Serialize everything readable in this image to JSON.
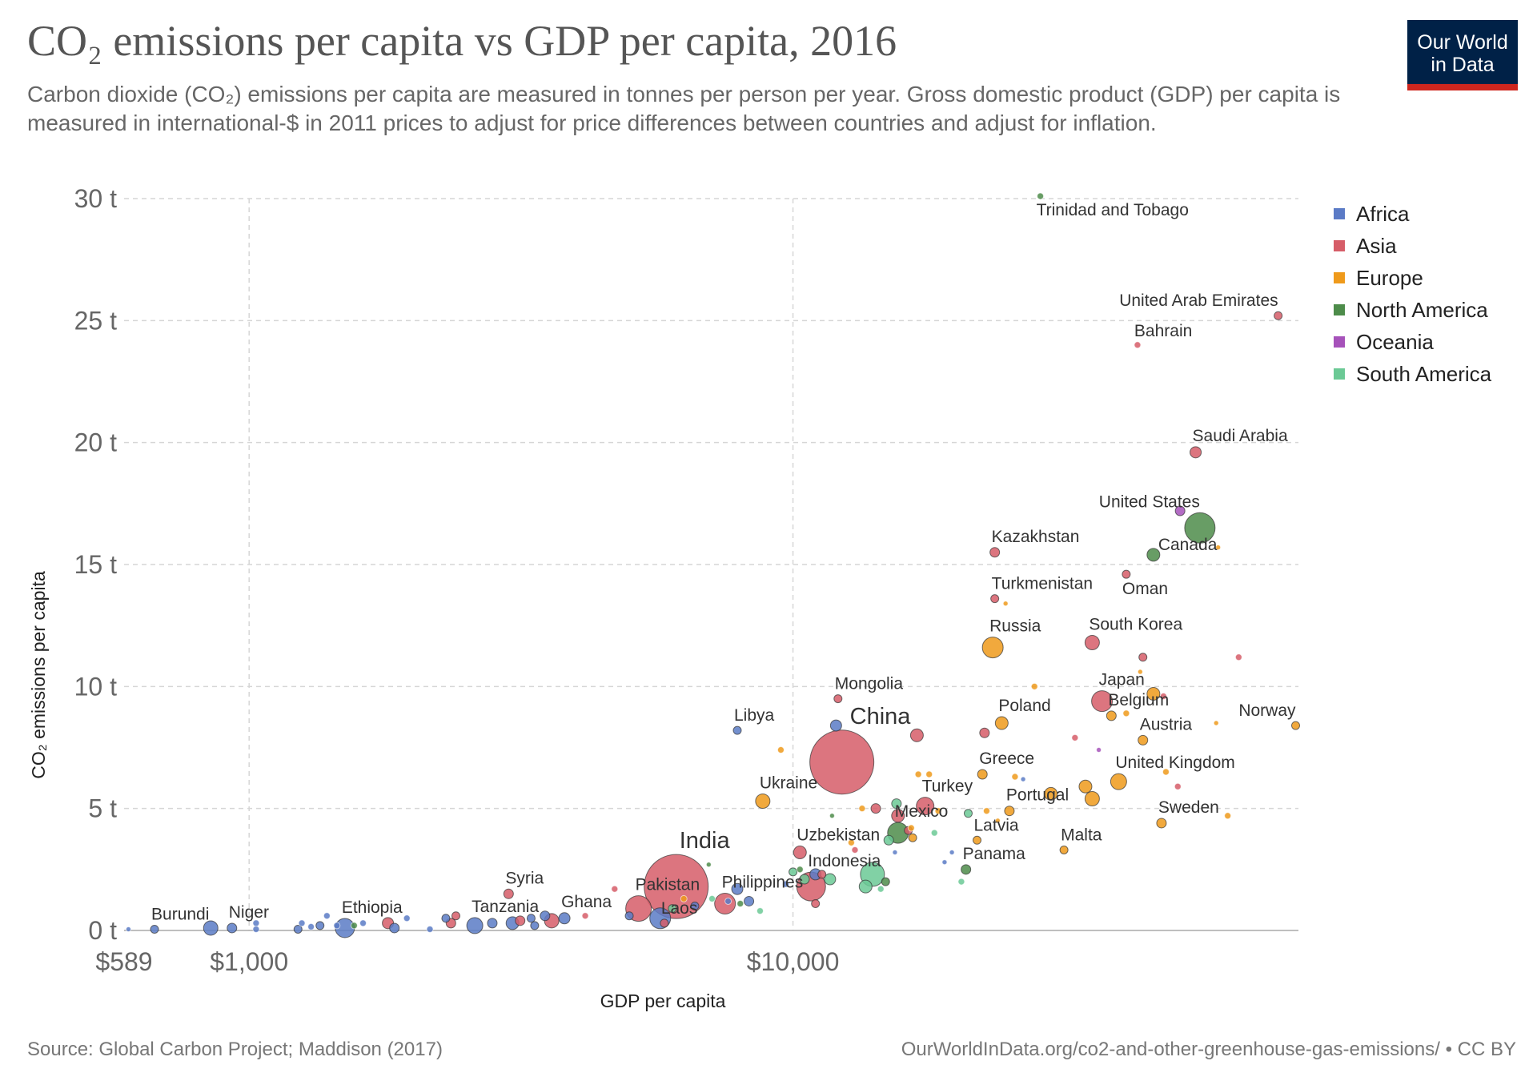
{
  "title": "CO₂ emissions per capita vs GDP per capita, 2016",
  "subtitle": "Carbon dioxide (CO₂) emissions per capita are measured in tonnes per person per year. Gross domestic product (GDP) per capita is measured in international-$ in 2011 prices to adjust for price differences between countries and adjust for inflation.",
  "logo": {
    "line1": "Our World",
    "line2": "in Data"
  },
  "footer": {
    "source": "Source: Global Carbon Project; Maddison (2017)",
    "url": "OurWorldInData.org/co2-and-other-greenhouse-gas-emissions/ • CC BY"
  },
  "colors": {
    "Africa": "#5b7bc6",
    "Asia": "#d65d68",
    "Europe": "#ef9a1b",
    "North America": "#4d8c4a",
    "Oceania": "#a652ba",
    "South America": "#6bc995",
    "grid": "#d6d6d6",
    "axis": "#aaaaaa"
  },
  "chart_data": {
    "type": "scatter",
    "xscale": "log",
    "xlim": [
      589,
      85000
    ],
    "ylim": [
      0,
      30
    ],
    "xlabel": "GDP per capita",
    "ylabel": "CO₂ emissions per capita",
    "yticks": [
      {
        "value": 0,
        "label": "0 t"
      },
      {
        "value": 5,
        "label": "5 t"
      },
      {
        "value": 10,
        "label": "10 t"
      },
      {
        "value": 15,
        "label": "15 t"
      },
      {
        "value": 20,
        "label": "20 t"
      },
      {
        "value": 25,
        "label": "25 t"
      },
      {
        "value": 30,
        "label": "30 t"
      }
    ],
    "xticks": [
      {
        "value": 589,
        "label": "$589",
        "grid": false
      },
      {
        "value": 1000,
        "label": "$1,000",
        "grid": true
      },
      {
        "value": 10000,
        "label": "$10,000",
        "grid": true
      }
    ],
    "legend": [
      "Africa",
      "Asia",
      "Europe",
      "North America",
      "Oceania",
      "South America"
    ],
    "points": [
      {
        "name": "Trinidad and Tobago",
        "region": "North America",
        "x": 28500,
        "y": 30.1,
        "r": 4,
        "label": true,
        "lpos": "below"
      },
      {
        "name": "United Arab Emirates",
        "region": "Asia",
        "x": 78000,
        "y": 25.2,
        "r": 5,
        "label": true,
        "lpos": "above-left"
      },
      {
        "name": "Bahrain",
        "region": "Asia",
        "x": 43000,
        "y": 24.0,
        "r": 4,
        "label": true,
        "lpos": "above"
      },
      {
        "name": "Saudi Arabia",
        "region": "Asia",
        "x": 55000,
        "y": 19.6,
        "r": 7,
        "label": true,
        "lpos": "above"
      },
      {
        "name": "United States",
        "region": "North America",
        "x": 56000,
        "y": 16.5,
        "r": 19,
        "label": true,
        "lpos": "above-left"
      },
      {
        "name": "Canada",
        "region": "North America",
        "x": 46000,
        "y": 15.4,
        "r": 8,
        "label": true,
        "lpos": "right"
      },
      {
        "name": "Kazakhstan",
        "region": "Asia",
        "x": 23500,
        "y": 15.5,
        "r": 6,
        "label": true,
        "lpos": "above"
      },
      {
        "name": "Oman",
        "region": "Asia",
        "x": 41000,
        "y": 14.6,
        "r": 5,
        "label": true,
        "lpos": "below"
      },
      {
        "name": "Turkmenistan",
        "region": "Asia",
        "x": 23500,
        "y": 13.6,
        "r": 5,
        "label": true,
        "lpos": "above"
      },
      {
        "name": "Russia",
        "region": "Europe",
        "x": 23300,
        "y": 11.6,
        "r": 13,
        "label": true,
        "lpos": "above"
      },
      {
        "name": "South Korea",
        "region": "Asia",
        "x": 35500,
        "y": 11.8,
        "r": 9,
        "label": true,
        "lpos": "above"
      },
      {
        "name": "Mongolia",
        "region": "Asia",
        "x": 12100,
        "y": 9.5,
        "r": 5,
        "label": true,
        "lpos": "above"
      },
      {
        "name": "Japan",
        "region": "Asia",
        "x": 37000,
        "y": 9.4,
        "r": 13,
        "label": true,
        "lpos": "above"
      },
      {
        "name": "Belgium",
        "region": "Europe",
        "x": 38500,
        "y": 8.8,
        "r": 6,
        "label": true,
        "lpos": "above"
      },
      {
        "name": "Norway",
        "region": "Europe",
        "x": 84000,
        "y": 8.4,
        "r": 5,
        "label": true,
        "lpos": "above-left"
      },
      {
        "name": "Poland",
        "region": "Europe",
        "x": 24200,
        "y": 8.5,
        "r": 8,
        "label": true,
        "lpos": "above"
      },
      {
        "name": "Libya",
        "region": "Africa",
        "x": 7900,
        "y": 8.2,
        "r": 5,
        "label": true,
        "lpos": "above"
      },
      {
        "name": "China",
        "region": "Asia",
        "x": 12300,
        "y": 6.9,
        "r": 40,
        "label": true,
        "lpos": "above-big"
      },
      {
        "name": "Austria",
        "region": "Europe",
        "x": 44000,
        "y": 7.8,
        "r": 6,
        "label": true,
        "lpos": "above"
      },
      {
        "name": "Greece",
        "region": "Europe",
        "x": 22300,
        "y": 6.4,
        "r": 6,
        "label": true,
        "lpos": "above"
      },
      {
        "name": "United Kingdom",
        "region": "Europe",
        "x": 39700,
        "y": 6.1,
        "r": 10,
        "label": true,
        "lpos": "above"
      },
      {
        "name": "Ukraine",
        "region": "Europe",
        "x": 8800,
        "y": 5.3,
        "r": 9,
        "label": true,
        "lpos": "above"
      },
      {
        "name": "Turkey",
        "region": "Asia",
        "x": 17500,
        "y": 5.1,
        "r": 11,
        "label": true,
        "lpos": "above"
      },
      {
        "name": "Portugal",
        "region": "Europe",
        "x": 25000,
        "y": 4.9,
        "r": 6,
        "label": true,
        "lpos": "above"
      },
      {
        "name": "Sweden",
        "region": "Europe",
        "x": 47600,
        "y": 4.4,
        "r": 6,
        "label": true,
        "lpos": "above"
      },
      {
        "name": "Mexico",
        "region": "North America",
        "x": 15600,
        "y": 4.0,
        "r": 13,
        "label": true,
        "lpos": "above"
      },
      {
        "name": "Latvia",
        "region": "Europe",
        "x": 21800,
        "y": 3.7,
        "r": 5,
        "label": true,
        "lpos": "above"
      },
      {
        "name": "Malta",
        "region": "Europe",
        "x": 31500,
        "y": 3.3,
        "r": 5,
        "label": true,
        "lpos": "above"
      },
      {
        "name": "Uzbekistan",
        "region": "Asia",
        "x": 10300,
        "y": 3.2,
        "r": 8,
        "label": true,
        "lpos": "above"
      },
      {
        "name": "Panama",
        "region": "North America",
        "x": 20800,
        "y": 2.5,
        "r": 6,
        "label": true,
        "lpos": "above"
      },
      {
        "name": "Indonesia",
        "region": "Asia",
        "x": 10800,
        "y": 1.8,
        "r": 18,
        "label": true,
        "lpos": "above"
      },
      {
        "name": "India",
        "region": "Asia",
        "x": 6100,
        "y": 1.8,
        "r": 40,
        "label": true,
        "lpos": "above-big"
      },
      {
        "name": "Philippines",
        "region": "Asia",
        "x": 7500,
        "y": 1.1,
        "r": 13,
        "label": true,
        "lpos": "above"
      },
      {
        "name": "Pakistan",
        "region": "Asia",
        "x": 5200,
        "y": 0.9,
        "r": 16,
        "label": true,
        "lpos": "above"
      },
      {
        "name": "Syria",
        "region": "Asia",
        "x": 3000,
        "y": 1.5,
        "r": 6,
        "label": true,
        "lpos": "above"
      },
      {
        "name": "Ghana",
        "region": "Africa",
        "x": 3800,
        "y": 0.5,
        "r": 7,
        "label": true,
        "lpos": "above"
      },
      {
        "name": "Laos",
        "region": "Asia",
        "x": 5800,
        "y": 0.3,
        "r": 5,
        "label": true,
        "lpos": "above"
      },
      {
        "name": "Tanzania",
        "region": "Africa",
        "x": 2600,
        "y": 0.2,
        "r": 10,
        "label": true,
        "lpos": "above"
      },
      {
        "name": "Ethiopia",
        "region": "Africa",
        "x": 1500,
        "y": 0.1,
        "r": 12,
        "label": true,
        "lpos": "above"
      },
      {
        "name": "Niger",
        "region": "Africa",
        "x": 930,
        "y": 0.1,
        "r": 6,
        "label": true,
        "lpos": "above"
      },
      {
        "name": "Burundi",
        "region": "Africa",
        "x": 670,
        "y": 0.05,
        "r": 5,
        "label": true,
        "lpos": "above"
      },
      {
        "region": "Africa",
        "x": 600,
        "y": 0.05,
        "r": 3
      },
      {
        "region": "Africa",
        "x": 850,
        "y": 0.1,
        "r": 9
      },
      {
        "region": "Africa",
        "x": 1030,
        "y": 0.3,
        "r": 4
      },
      {
        "region": "Africa",
        "x": 1030,
        "y": 0.05,
        "r": 4
      },
      {
        "region": "Africa",
        "x": 1250,
        "y": 0.3,
        "r": 4
      },
      {
        "region": "Africa",
        "x": 1230,
        "y": 0.05,
        "r": 5
      },
      {
        "region": "Africa",
        "x": 1300,
        "y": 0.15,
        "r": 4
      },
      {
        "region": "Africa",
        "x": 1350,
        "y": 0.2,
        "r": 5
      },
      {
        "region": "Africa",
        "x": 1390,
        "y": 0.6,
        "r": 4
      },
      {
        "region": "Africa",
        "x": 1450,
        "y": 0.2,
        "r": 4
      },
      {
        "region": "North America",
        "x": 1560,
        "y": 0.2,
        "r": 4
      },
      {
        "region": "Africa",
        "x": 1620,
        "y": 0.3,
        "r": 4
      },
      {
        "region": "Asia",
        "x": 1800,
        "y": 0.3,
        "r": 7
      },
      {
        "region": "Africa",
        "x": 1850,
        "y": 0.1,
        "r": 6
      },
      {
        "region": "Africa",
        "x": 1950,
        "y": 0.5,
        "r": 4
      },
      {
        "region": "Africa",
        "x": 2150,
        "y": 0.05,
        "r": 4
      },
      {
        "region": "Africa",
        "x": 2300,
        "y": 0.5,
        "r": 5
      },
      {
        "region": "Asia",
        "x": 2350,
        "y": 0.3,
        "r": 6
      },
      {
        "region": "Asia",
        "x": 2400,
        "y": 0.6,
        "r": 5
      },
      {
        "region": "Africa",
        "x": 2800,
        "y": 0.3,
        "r": 6
      },
      {
        "region": "Africa",
        "x": 3050,
        "y": 0.3,
        "r": 8
      },
      {
        "region": "Asia",
        "x": 3150,
        "y": 0.4,
        "r": 6
      },
      {
        "region": "Africa",
        "x": 3300,
        "y": 0.5,
        "r": 5
      },
      {
        "region": "Africa",
        "x": 3350,
        "y": 0.2,
        "r": 5
      },
      {
        "region": "Africa",
        "x": 3500,
        "y": 0.6,
        "r": 6
      },
      {
        "region": "Asia",
        "x": 3600,
        "y": 0.4,
        "r": 9
      },
      {
        "region": "Asia",
        "x": 4150,
        "y": 0.6,
        "r": 4
      },
      {
        "region": "Asia",
        "x": 4700,
        "y": 1.7,
        "r": 4
      },
      {
        "region": "Africa",
        "x": 5000,
        "y": 0.6,
        "r": 5
      },
      {
        "region": "Africa",
        "x": 5700,
        "y": 0.5,
        "r": 13
      },
      {
        "region": "South America",
        "x": 6000,
        "y": 0.9,
        "r": 5
      },
      {
        "region": "Europe",
        "x": 6300,
        "y": 1.3,
        "r": 4
      },
      {
        "region": "Africa",
        "x": 6600,
        "y": 1.0,
        "r": 5
      },
      {
        "region": "North America",
        "x": 7000,
        "y": 2.7,
        "r": 3
      },
      {
        "region": "South America",
        "x": 7100,
        "y": 1.3,
        "r": 4
      },
      {
        "region": "Africa",
        "x": 7600,
        "y": 1.2,
        "r": 4
      },
      {
        "region": "Africa",
        "x": 7900,
        "y": 1.7,
        "r": 7
      },
      {
        "region": "North America",
        "x": 8000,
        "y": 1.1,
        "r": 4
      },
      {
        "region": "Africa",
        "x": 8300,
        "y": 1.2,
        "r": 6
      },
      {
        "region": "South America",
        "x": 8700,
        "y": 0.8,
        "r": 4
      },
      {
        "region": "Europe",
        "x": 9500,
        "y": 7.4,
        "r": 4
      },
      {
        "region": "Africa",
        "x": 9700,
        "y": 1.9,
        "r": 4
      },
      {
        "region": "South America",
        "x": 10000,
        "y": 2.4,
        "r": 5
      },
      {
        "region": "North America",
        "x": 10300,
        "y": 2.5,
        "r": 4
      },
      {
        "region": "South America",
        "x": 10500,
        "y": 2.1,
        "r": 6
      },
      {
        "region": "Africa",
        "x": 11000,
        "y": 2.3,
        "r": 7
      },
      {
        "region": "Asia",
        "x": 11000,
        "y": 1.1,
        "r": 5
      },
      {
        "region": "Asia",
        "x": 11300,
        "y": 2.3,
        "r": 5
      },
      {
        "region": "South America",
        "x": 11700,
        "y": 2.1,
        "r": 7
      },
      {
        "region": "North America",
        "x": 11800,
        "y": 4.7,
        "r": 3
      },
      {
        "region": "Africa",
        "x": 12000,
        "y": 8.4,
        "r": 7
      },
      {
        "region": "Europe",
        "x": 12800,
        "y": 3.6,
        "r": 4
      },
      {
        "region": "Asia",
        "x": 13000,
        "y": 3.3,
        "r": 4
      },
      {
        "region": "Europe",
        "x": 13400,
        "y": 5.0,
        "r": 4
      },
      {
        "region": "South America",
        "x": 13600,
        "y": 1.8,
        "r": 8
      },
      {
        "region": "South America",
        "x": 14000,
        "y": 2.3,
        "r": 15
      },
      {
        "region": "Asia",
        "x": 14200,
        "y": 5.0,
        "r": 6
      },
      {
        "region": "South America",
        "x": 14500,
        "y": 1.7,
        "r": 4
      },
      {
        "region": "North America",
        "x": 14800,
        "y": 2.0,
        "r": 5
      },
      {
        "region": "South America",
        "x": 15000,
        "y": 3.7,
        "r": 6
      },
      {
        "region": "Africa",
        "x": 15400,
        "y": 3.2,
        "r": 3
      },
      {
        "region": "South America",
        "x": 15500,
        "y": 5.2,
        "r": 6
      },
      {
        "region": "Asia",
        "x": 15600,
        "y": 4.7,
        "r": 8
      },
      {
        "region": "Asia",
        "x": 16300,
        "y": 4.1,
        "r": 5
      },
      {
        "region": "Europe",
        "x": 16500,
        "y": 4.2,
        "r": 4
      },
      {
        "region": "Europe",
        "x": 16600,
        "y": 3.8,
        "r": 5
      },
      {
        "region": "Asia",
        "x": 16900,
        "y": 8.0,
        "r": 8
      },
      {
        "region": "Europe",
        "x": 17000,
        "y": 6.4,
        "r": 4
      },
      {
        "region": "Europe",
        "x": 17800,
        "y": 6.4,
        "r": 4
      },
      {
        "region": "Europe",
        "x": 18500,
        "y": 4.9,
        "r": 4
      },
      {
        "region": "South America",
        "x": 18200,
        "y": 4.0,
        "r": 4
      },
      {
        "region": "Africa",
        "x": 19000,
        "y": 2.8,
        "r": 3
      },
      {
        "region": "Africa",
        "x": 19600,
        "y": 3.2,
        "r": 3
      },
      {
        "region": "South America",
        "x": 20400,
        "y": 2.0,
        "r": 4
      },
      {
        "region": "South America",
        "x": 21000,
        "y": 4.8,
        "r": 5
      },
      {
        "region": "Asia",
        "x": 22500,
        "y": 8.1,
        "r": 6
      },
      {
        "region": "Europe",
        "x": 22700,
        "y": 4.9,
        "r": 4
      },
      {
        "region": "Europe",
        "x": 23800,
        "y": 4.5,
        "r": 3
      },
      {
        "region": "Europe",
        "x": 24600,
        "y": 13.4,
        "r": 3
      },
      {
        "region": "Europe",
        "x": 25600,
        "y": 6.3,
        "r": 4
      },
      {
        "region": "Africa",
        "x": 26500,
        "y": 6.2,
        "r": 3
      },
      {
        "region": "Europe",
        "x": 27800,
        "y": 10.0,
        "r": 4
      },
      {
        "region": "Europe",
        "x": 29800,
        "y": 5.6,
        "r": 8
      },
      {
        "region": "Asia",
        "x": 33000,
        "y": 7.9,
        "r": 4
      },
      {
        "region": "Europe",
        "x": 34500,
        "y": 5.9,
        "r": 8
      },
      {
        "region": "Europe",
        "x": 35500,
        "y": 5.4,
        "r": 9
      },
      {
        "region": "Oceania",
        "x": 36500,
        "y": 7.4,
        "r": 3
      },
      {
        "region": "Europe",
        "x": 41000,
        "y": 8.9,
        "r": 4
      },
      {
        "region": "Europe",
        "x": 43500,
        "y": 10.6,
        "r": 3
      },
      {
        "region": "Asia",
        "x": 44000,
        "y": 11.2,
        "r": 5
      },
      {
        "region": "Europe",
        "x": 46000,
        "y": 9.7,
        "r": 8
      },
      {
        "region": "Asia",
        "x": 48000,
        "y": 9.6,
        "r": 4
      },
      {
        "region": "Europe",
        "x": 48500,
        "y": 6.5,
        "r": 4
      },
      {
        "region": "Asia",
        "x": 51000,
        "y": 5.9,
        "r": 4
      },
      {
        "region": "Oceania",
        "x": 51500,
        "y": 17.2,
        "r": 6
      },
      {
        "region": "Europe",
        "x": 60000,
        "y": 8.5,
        "r": 3
      },
      {
        "region": "Europe",
        "x": 60500,
        "y": 15.7,
        "r": 3
      },
      {
        "region": "Europe",
        "x": 63000,
        "y": 4.7,
        "r": 4
      },
      {
        "region": "Asia",
        "x": 66000,
        "y": 11.2,
        "r": 4
      }
    ]
  }
}
